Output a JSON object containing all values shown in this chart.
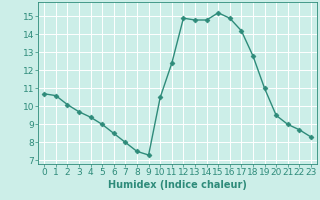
{
  "x": [
    0,
    1,
    2,
    3,
    4,
    5,
    6,
    7,
    8,
    9,
    10,
    11,
    12,
    13,
    14,
    15,
    16,
    17,
    18,
    19,
    20,
    21,
    22,
    23
  ],
  "y": [
    10.7,
    10.6,
    10.1,
    9.7,
    9.4,
    9.0,
    8.5,
    8.0,
    7.5,
    7.3,
    10.5,
    12.4,
    14.9,
    14.8,
    14.8,
    15.2,
    14.9,
    14.2,
    12.8,
    11.0,
    9.5,
    9.0,
    8.7,
    8.3
  ],
  "line_color": "#2e8b7a",
  "marker": "D",
  "marker_size": 2.5,
  "bg_color": "#cceee8",
  "grid_color": "#ffffff",
  "xlabel": "Humidex (Indice chaleur)",
  "xlim": [
    -0.5,
    23.5
  ],
  "ylim": [
    6.8,
    15.8
  ],
  "yticks": [
    7,
    8,
    9,
    10,
    11,
    12,
    13,
    14,
    15
  ],
  "xticks": [
    0,
    1,
    2,
    3,
    4,
    5,
    6,
    7,
    8,
    9,
    10,
    11,
    12,
    13,
    14,
    15,
    16,
    17,
    18,
    19,
    20,
    21,
    22,
    23
  ],
  "xlabel_fontsize": 7,
  "tick_fontsize": 6.5,
  "line_width": 1.0
}
